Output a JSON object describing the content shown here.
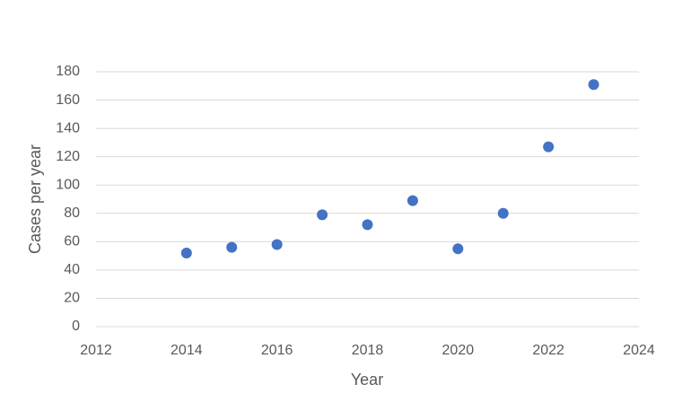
{
  "chart_data": {
    "type": "scatter",
    "x_label": "Year",
    "y_label": "Cases per year",
    "x": [
      2014,
      2015,
      2016,
      2017,
      2018,
      2019,
      2020,
      2021,
      2022,
      2023
    ],
    "series": [
      {
        "color": "#4472c4",
        "values": [
          52,
          56,
          58,
          79,
          72,
          89,
          55,
          80,
          127,
          171
        ]
      }
    ],
    "xlim": [
      2012,
      2024
    ],
    "xticks": [
      2012,
      2014,
      2016,
      2018,
      2020,
      2022,
      2024
    ],
    "ylim": [
      0,
      180
    ],
    "yticks": [
      0,
      20,
      40,
      60,
      80,
      100,
      120,
      140,
      160,
      180
    ],
    "grid": true
  }
}
